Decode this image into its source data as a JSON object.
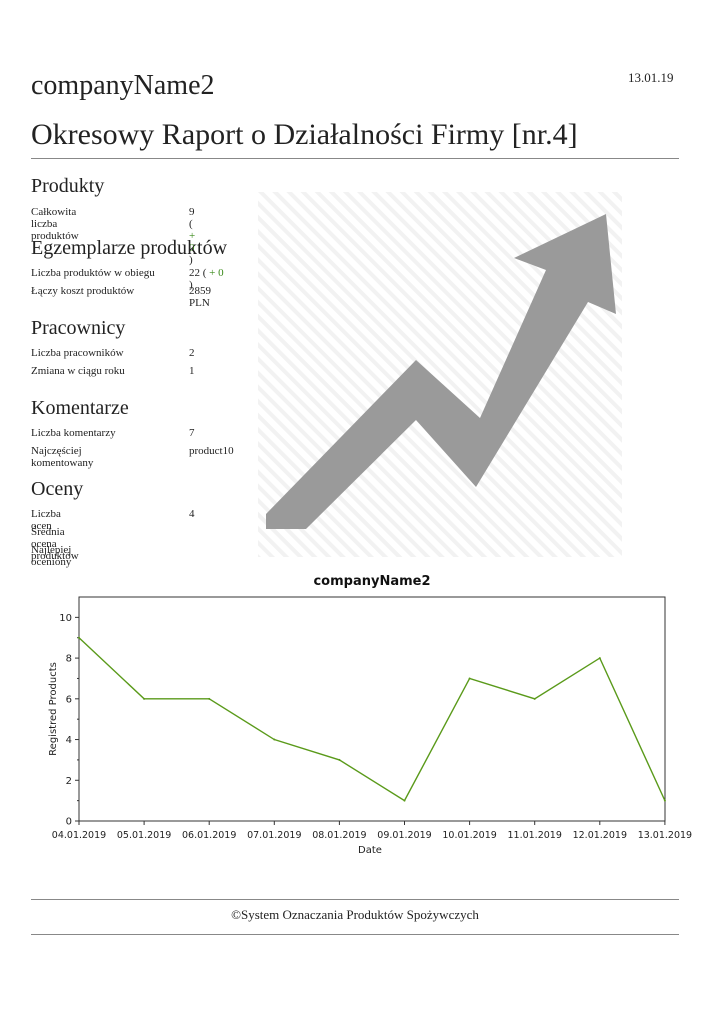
{
  "header": {
    "date": "13.01.19",
    "company": "companyName2",
    "title": "Okresowy Raport o Działalności Firmy [nr.4]"
  },
  "sections": {
    "produkty": {
      "heading": "Produkty",
      "rows": [
        {
          "label": "Całkowita liczba produktów",
          "value": "9",
          "delta": "+ 0"
        }
      ]
    },
    "egzemplarze": {
      "heading": "Egzemplarze produktów",
      "rows": [
        {
          "label": "Liczba produktów w obiegu",
          "value": "22",
          "delta": "+ 0"
        },
        {
          "label": "Łączy koszt produktów",
          "value": "2859 PLN"
        }
      ]
    },
    "pracownicy": {
      "heading": "Pracownicy",
      "rows": [
        {
          "label": "Liczba pracowników",
          "value": "2"
        },
        {
          "label": "Zmiana w ciągu roku",
          "value": "1"
        }
      ]
    },
    "komentarze": {
      "heading": "Komentarze",
      "rows": [
        {
          "label": "Liczba komentarzy",
          "value": "7"
        },
        {
          "label": "Najczęściej komentowany",
          "value": "product10"
        }
      ]
    },
    "oceny": {
      "heading": "Oceny",
      "rows": [
        {
          "label": "Liczba ocen",
          "value": "4"
        },
        {
          "label": "Średnia ocena produktów",
          "value": ""
        },
        {
          "label": "Najlepiej oceniony",
          "value": ""
        }
      ]
    }
  },
  "colors": {
    "line": "#5a9a1a",
    "arrow": "#9a9a9a",
    "delta": "#3a8a1a"
  },
  "chart_data": {
    "type": "line",
    "title": "companyName2",
    "xlabel": "Date",
    "ylabel": "Registred Products",
    "ylim": [
      0,
      11
    ],
    "yticks": [
      0,
      2,
      4,
      6,
      8,
      10
    ],
    "categories": [
      "04.01.2019",
      "05.01.2019",
      "06.01.2019",
      "07.01.2019",
      "08.01.2019",
      "09.01.2019",
      "10.01.2019",
      "11.01.2019",
      "12.01.2019",
      "13.01.2019"
    ],
    "series": [
      {
        "values": [
          9,
          6,
          6,
          4,
          3,
          1,
          7,
          6,
          8,
          1
        ]
      }
    ],
    "grid": false
  },
  "footer": {
    "text": "©System Oznaczania Produktów Spożywczych"
  }
}
